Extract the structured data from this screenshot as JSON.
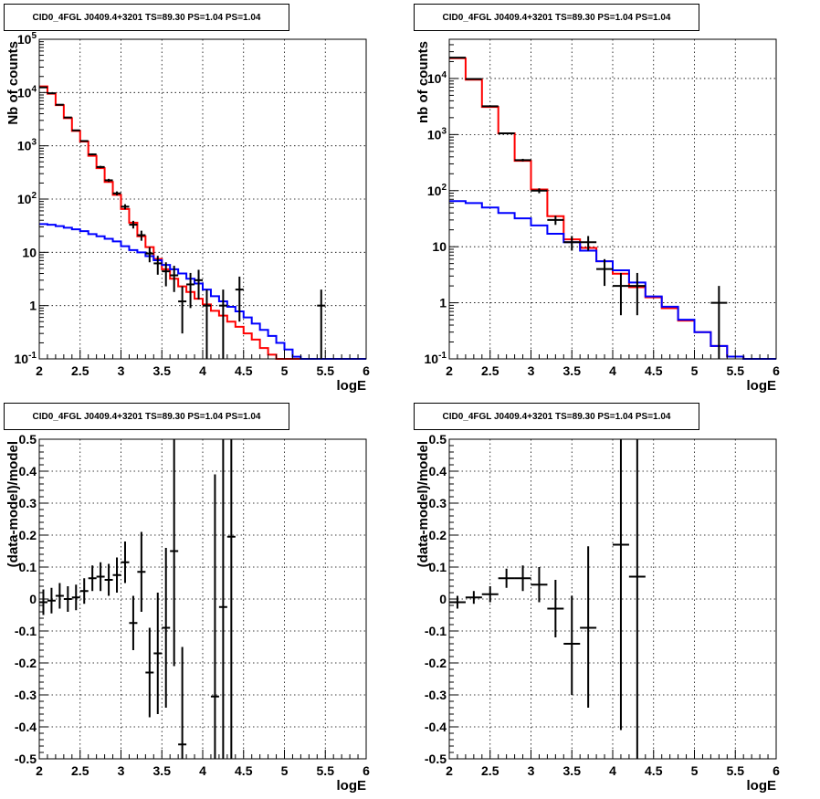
{
  "chart_data": [
    {
      "panel": "top-left",
      "type": "histogram",
      "title": "CID0_4FGL J0409.4+3201 TS=89.30 PS=1.04 PS=1.04",
      "xlabel": "logE",
      "ylabel": "Nb of counts",
      "xlim": [
        2,
        6
      ],
      "ylim": [
        0.1,
        100000
      ],
      "yscale": "log",
      "grid": true,
      "x_ticks": [
        "2",
        "2.5",
        "3",
        "3.5",
        "4",
        "4.5",
        "5",
        "5.5",
        "6"
      ],
      "y_ticks": [
        "10^-1",
        "1",
        "10",
        "10^2",
        "10^3",
        "10^4",
        "10^5"
      ],
      "bin_edges": [
        2.0,
        2.1,
        2.2,
        2.3,
        2.4,
        2.5,
        2.6,
        2.7,
        2.8,
        2.9,
        3.0,
        3.1,
        3.2,
        3.3,
        3.4,
        3.5,
        3.6,
        3.7,
        3.8,
        3.9,
        4.0,
        4.1,
        4.2,
        4.3,
        4.4,
        4.5,
        4.6,
        4.7,
        4.8,
        4.9,
        5.0,
        5.1,
        5.2,
        5.3,
        5.4,
        5.5,
        5.6,
        5.7,
        5.8,
        5.9,
        6.0
      ],
      "series": [
        {
          "color": "#ff0000",
          "style": "step",
          "values": [
            13000,
            9500,
            5800,
            3300,
            1900,
            1200,
            650,
            380,
            210,
            120,
            65,
            36,
            20,
            12.5,
            7.5,
            4.8,
            3.2,
            2.3,
            1.8,
            1.35,
            1.05,
            0.8,
            0.65,
            0.5,
            0.4,
            0.3,
            0.23,
            0.16,
            0.12,
            0.1,
            0.1,
            0.1,
            0.1,
            0.1,
            0.1,
            0.1,
            0.1,
            0.1,
            0.1,
            0.1
          ]
        },
        {
          "color": "#0000ff",
          "style": "step",
          "values": [
            34,
            33,
            31,
            29,
            27,
            25,
            22,
            20,
            18,
            16,
            13,
            11,
            10,
            8.5,
            7.1,
            5.8,
            4.8,
            4.0,
            3.2,
            2.6,
            2.0,
            1.5,
            1.2,
            0.95,
            0.78,
            0.6,
            0.46,
            0.35,
            0.27,
            0.2,
            0.15,
            0.11,
            0.1,
            0.1,
            0.1,
            0.1,
            0.1,
            0.1,
            0.1,
            0.1
          ]
        }
      ],
      "points": [
        {
          "x": 2.05,
          "y": 12500,
          "ylo": 12300,
          "yhi": 12700
        },
        {
          "x": 2.15,
          "y": 9700,
          "ylo": 9500,
          "yhi": 9900
        },
        {
          "x": 2.25,
          "y": 5900,
          "ylo": 5750,
          "yhi": 6050
        },
        {
          "x": 2.35,
          "y": 3400,
          "ylo": 3300,
          "yhi": 3500
        },
        {
          "x": 2.45,
          "y": 1950,
          "ylo": 1900,
          "yhi": 2000
        },
        {
          "x": 2.55,
          "y": 1230,
          "ylo": 1195,
          "yhi": 1265
        },
        {
          "x": 2.65,
          "y": 690,
          "ylo": 665,
          "yhi": 715
        },
        {
          "x": 2.75,
          "y": 400,
          "ylo": 380,
          "yhi": 420
        },
        {
          "x": 2.85,
          "y": 225,
          "ylo": 210,
          "yhi": 240
        },
        {
          "x": 2.95,
          "y": 128,
          "ylo": 117,
          "yhi": 139
        },
        {
          "x": 3.05,
          "y": 72,
          "ylo": 64,
          "yhi": 80
        },
        {
          "x": 3.15,
          "y": 33,
          "ylo": 28,
          "yhi": 39
        },
        {
          "x": 3.25,
          "y": 21,
          "ylo": 16.5,
          "yhi": 25.5
        },
        {
          "x": 3.35,
          "y": 9.5,
          "ylo": 6.5,
          "yhi": 12.5
        },
        {
          "x": 3.45,
          "y": 6.2,
          "ylo": 3.8,
          "yhi": 8.6
        },
        {
          "x": 3.55,
          "y": 4.4,
          "ylo": 2.3,
          "yhi": 6.5
        },
        {
          "x": 3.65,
          "y": 3.7,
          "ylo": 1.8,
          "yhi": 5.6
        },
        {
          "x": 3.75,
          "y": 1.2,
          "ylo": 0.3,
          "yhi": 2.3
        },
        {
          "x": 3.85,
          "y": 2.5,
          "ylo": 0.9,
          "yhi": 4.1
        },
        {
          "x": 3.95,
          "y": 3.0,
          "ylo": 1.3,
          "yhi": 4.7
        },
        {
          "x": 4.05,
          "y": 1.0,
          "ylo": 0.1,
          "yhi": 2.0
        },
        {
          "x": 4.25,
          "y": 1.0,
          "ylo": 0.1,
          "yhi": 2.0
        },
        {
          "x": 4.45,
          "y": 2.0,
          "ylo": 0.5,
          "yhi": 3.5
        },
        {
          "x": 5.45,
          "y": 1.0,
          "ylo": 0.1,
          "yhi": 2.0
        }
      ]
    },
    {
      "panel": "top-right",
      "type": "histogram",
      "title": "CID0_4FGL J0409.4+3201 TS=89.30 PS=1.04 PS=1.04",
      "xlabel": "logE",
      "ylabel": "nb of counts",
      "xlim": [
        2,
        6
      ],
      "ylim": [
        0.1,
        50000
      ],
      "yscale": "log",
      "grid": true,
      "x_ticks": [
        "2",
        "2.5",
        "3",
        "3.5",
        "4",
        "4.5",
        "5",
        "5.5",
        "6"
      ],
      "y_ticks": [
        "10^-1",
        "1",
        "10",
        "10^2",
        "10^3",
        "10^4"
      ],
      "bin_edges": [
        2.0,
        2.2,
        2.4,
        2.6,
        2.8,
        3.0,
        3.2,
        3.4,
        3.6,
        3.8,
        4.0,
        4.2,
        4.4,
        4.6,
        4.8,
        5.0,
        5.2,
        5.4,
        5.6,
        5.8,
        6.0
      ],
      "series": [
        {
          "color": "#ff0000",
          "style": "step",
          "values": [
            23000,
            9500,
            3100,
            1050,
            340,
            105,
            35,
            13.5,
            9.5,
            5.5,
            3.3,
            1.9,
            1.25,
            0.8,
            0.48,
            0.3,
            0.17,
            0.11,
            0.1,
            0.1
          ]
        },
        {
          "color": "#0000ff",
          "style": "step",
          "values": [
            65,
            60,
            50,
            40,
            32,
            24,
            17,
            12,
            8.5,
            5.5,
            3.8,
            2.3,
            1.3,
            0.85,
            0.5,
            0.3,
            0.17,
            0.11,
            0.1,
            0.1
          ]
        }
      ],
      "points": [
        {
          "x": 2.1,
          "y": 23500,
          "ylo": 23300,
          "yhi": 23700
        },
        {
          "x": 2.3,
          "y": 9800,
          "ylo": 9600,
          "yhi": 10000
        },
        {
          "x": 2.5,
          "y": 3200,
          "ylo": 3140,
          "yhi": 3260
        },
        {
          "x": 2.7,
          "y": 1050,
          "ylo": 1020,
          "yhi": 1080
        },
        {
          "x": 2.9,
          "y": 350,
          "ylo": 331,
          "yhi": 369
        },
        {
          "x": 3.1,
          "y": 100,
          "ylo": 90,
          "yhi": 110
        },
        {
          "x": 3.3,
          "y": 30,
          "ylo": 24.5,
          "yhi": 35.5
        },
        {
          "x": 3.5,
          "y": 12,
          "ylo": 8.5,
          "yhi": 15.5
        },
        {
          "x": 3.7,
          "y": 12,
          "ylo": 8.5,
          "yhi": 15.5
        },
        {
          "x": 3.9,
          "y": 4,
          "ylo": 2,
          "yhi": 6
        },
        {
          "x": 4.1,
          "y": 2,
          "ylo": 0.6,
          "yhi": 3.4
        },
        {
          "x": 4.3,
          "y": 2,
          "ylo": 0.6,
          "yhi": 3.4
        },
        {
          "x": 5.3,
          "y": 1,
          "ylo": 0.1,
          "yhi": 2.0
        }
      ]
    },
    {
      "panel": "bottom-left",
      "type": "scatter",
      "title": "CID0_4FGL J0409.4+3201 TS=89.30 PS=1.04 PS=1.04",
      "xlabel": "logE",
      "ylabel": "(data-model)/model",
      "xlim": [
        2,
        6
      ],
      "ylim": [
        -0.5,
        0.5
      ],
      "yscale": "linear",
      "grid": true,
      "x_ticks": [
        "2",
        "2.5",
        "3",
        "3.5",
        "4",
        "4.5",
        "5",
        "5.5",
        "6"
      ],
      "y_ticks": [
        "-0.5",
        "-0.4",
        "-0.3",
        "-0.2",
        "-0.1",
        "0",
        "0.1",
        "0.2",
        "0.3",
        "0.4",
        "0.5"
      ],
      "points": [
        {
          "x": 2.05,
          "y": -0.01,
          "ylo": -0.05,
          "yhi": 0.03
        },
        {
          "x": 2.15,
          "y": -0.005,
          "ylo": -0.045,
          "yhi": 0.035
        },
        {
          "x": 2.25,
          "y": 0.01,
          "ylo": -0.03,
          "yhi": 0.05
        },
        {
          "x": 2.35,
          "y": 0.0,
          "ylo": -0.04,
          "yhi": 0.04
        },
        {
          "x": 2.45,
          "y": 0.005,
          "ylo": -0.035,
          "yhi": 0.045
        },
        {
          "x": 2.55,
          "y": 0.025,
          "ylo": -0.015,
          "yhi": 0.065
        },
        {
          "x": 2.65,
          "y": 0.065,
          "ylo": 0.025,
          "yhi": 0.105
        },
        {
          "x": 2.75,
          "y": 0.07,
          "ylo": 0.025,
          "yhi": 0.115
        },
        {
          "x": 2.85,
          "y": 0.06,
          "ylo": 0.01,
          "yhi": 0.11
        },
        {
          "x": 2.95,
          "y": 0.075,
          "ylo": 0.02,
          "yhi": 0.13
        },
        {
          "x": 3.05,
          "y": 0.115,
          "ylo": 0.05,
          "yhi": 0.18
        },
        {
          "x": 3.15,
          "y": -0.075,
          "ylo": -0.16,
          "yhi": 0.01
        },
        {
          "x": 3.25,
          "y": 0.085,
          "ylo": -0.04,
          "yhi": 0.21
        },
        {
          "x": 3.35,
          "y": -0.23,
          "ylo": -0.37,
          "yhi": -0.09
        },
        {
          "x": 3.45,
          "y": -0.17,
          "ylo": -0.36,
          "yhi": 0.02
        },
        {
          "x": 3.55,
          "y": -0.09,
          "ylo": -0.34,
          "yhi": 0.16
        },
        {
          "x": 3.65,
          "y": 0.15,
          "ylo": -0.21,
          "yhi": 0.5
        },
        {
          "x": 3.75,
          "y": -0.455,
          "ylo": -0.5,
          "yhi": -0.15
        },
        {
          "x": 4.15,
          "y": -0.305,
          "ylo": -0.5,
          "yhi": 0.39
        },
        {
          "x": 4.25,
          "y": -0.025,
          "ylo": -0.5,
          "yhi": 0.5
        },
        {
          "x": 4.35,
          "y": 0.195,
          "ylo": -0.5,
          "yhi": 0.5
        }
      ]
    },
    {
      "panel": "bottom-right",
      "type": "scatter",
      "title": "CID0_4FGL J0409.4+3201 TS=89.30 PS=1.04 PS=1.04",
      "xlabel": "logE",
      "ylabel": "(data-model)/model",
      "xlim": [
        2,
        6
      ],
      "ylim": [
        -0.5,
        0.5
      ],
      "yscale": "linear",
      "grid": true,
      "x_ticks": [
        "2",
        "2.5",
        "3",
        "3.5",
        "4",
        "4.5",
        "5",
        "5.5",
        "6"
      ],
      "y_ticks": [
        "-0.5",
        "-0.4",
        "-0.3",
        "-0.2",
        "-0.1",
        "0",
        "0.1",
        "0.2",
        "0.3",
        "0.4",
        "0.5"
      ],
      "points": [
        {
          "x": 2.1,
          "y": -0.01,
          "ylo": -0.03,
          "yhi": 0.01
        },
        {
          "x": 2.3,
          "y": 0.005,
          "ylo": -0.015,
          "yhi": 0.025
        },
        {
          "x": 2.5,
          "y": 0.015,
          "ylo": -0.01,
          "yhi": 0.04
        },
        {
          "x": 2.7,
          "y": 0.065,
          "ylo": 0.035,
          "yhi": 0.095
        },
        {
          "x": 2.9,
          "y": 0.065,
          "ylo": 0.025,
          "yhi": 0.105
        },
        {
          "x": 3.1,
          "y": 0.045,
          "ylo": -0.01,
          "yhi": 0.1
        },
        {
          "x": 3.3,
          "y": -0.03,
          "ylo": -0.12,
          "yhi": 0.06
        },
        {
          "x": 3.5,
          "y": -0.14,
          "ylo": -0.3,
          "yhi": 0.01
        },
        {
          "x": 3.7,
          "y": -0.09,
          "ylo": -0.34,
          "yhi": 0.165
        },
        {
          "x": 4.1,
          "y": 0.17,
          "ylo": -0.41,
          "yhi": 0.5
        },
        {
          "x": 4.3,
          "y": 0.07,
          "ylo": -0.5,
          "yhi": 0.5
        }
      ]
    }
  ]
}
